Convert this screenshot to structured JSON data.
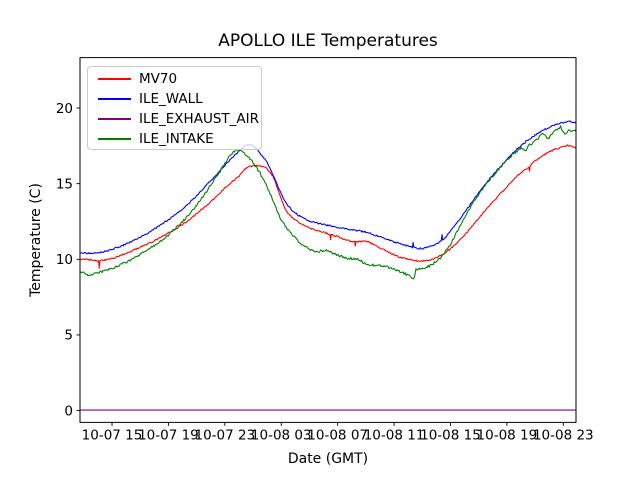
{
  "chart_data": {
    "type": "line",
    "title": "APOLLO ILE Temperatures",
    "xlabel": "Date (GMT)",
    "ylabel": "Temperature (C)",
    "x_encoding": "hours since 10-07 00:00 GMT",
    "xlim": [
      12.73,
      47.9
    ],
    "ylim": [
      -0.78,
      23.33
    ],
    "grid": false,
    "legend_position": "upper left",
    "x_ticks": [
      {
        "label": "10-07 15",
        "hour": 15
      },
      {
        "label": "10-07 19",
        "hour": 19
      },
      {
        "label": "10-07 23",
        "hour": 23
      },
      {
        "label": "10-08 03",
        "hour": 27
      },
      {
        "label": "10-08 07",
        "hour": 31
      },
      {
        "label": "10-08 11",
        "hour": 35
      },
      {
        "label": "10-08 15",
        "hour": 39
      },
      {
        "label": "10-08 19",
        "hour": 43
      },
      {
        "label": "10-08 23",
        "hour": 47
      }
    ],
    "y_ticks": [
      0,
      5,
      10,
      15,
      20
    ],
    "series": [
      {
        "name": "MV70",
        "color": "#ff0000",
        "noise": 0.05,
        "points": [
          [
            12.73,
            10.0
          ],
          [
            13.2,
            10.0
          ],
          [
            13.8,
            9.92
          ],
          [
            14.05,
            9.9
          ],
          [
            14.1,
            9.45
          ],
          [
            14.15,
            9.9
          ],
          [
            14.5,
            9.95
          ],
          [
            15,
            10.05
          ],
          [
            15.5,
            10.2
          ],
          [
            16,
            10.4
          ],
          [
            16.5,
            10.6
          ],
          [
            17,
            10.8
          ],
          [
            17.5,
            11.0
          ],
          [
            18,
            11.22
          ],
          [
            18.5,
            11.48
          ],
          [
            19,
            11.75
          ],
          [
            19.5,
            12.0
          ],
          [
            20,
            12.3
          ],
          [
            20.5,
            12.62
          ],
          [
            21,
            13.0
          ],
          [
            21.5,
            13.4
          ],
          [
            22,
            13.8
          ],
          [
            22.5,
            14.25
          ],
          [
            23,
            14.7
          ],
          [
            23.5,
            15.1
          ],
          [
            24,
            15.5
          ],
          [
            24.4,
            15.95
          ],
          [
            24.8,
            16.15
          ],
          [
            25.2,
            16.2
          ],
          [
            25.6,
            16.15
          ],
          [
            26,
            16.0
          ],
          [
            26.4,
            15.5
          ],
          [
            26.7,
            14.8
          ],
          [
            27,
            14.0
          ],
          [
            27.3,
            13.3
          ],
          [
            27.6,
            12.9
          ],
          [
            28,
            12.6
          ],
          [
            28.4,
            12.35
          ],
          [
            28.8,
            12.15
          ],
          [
            29.2,
            12.0
          ],
          [
            29.6,
            11.9
          ],
          [
            30,
            11.78
          ],
          [
            30.45,
            11.65
          ],
          [
            30.5,
            11.32
          ],
          [
            30.55,
            11.62
          ],
          [
            31,
            11.5
          ],
          [
            31.4,
            11.35
          ],
          [
            31.7,
            11.25
          ],
          [
            32,
            11.2
          ],
          [
            32.2,
            11.18
          ],
          [
            32.25,
            10.9
          ],
          [
            32.3,
            11.15
          ],
          [
            32.8,
            11.2
          ],
          [
            33.2,
            11.15
          ],
          [
            33.6,
            10.95
          ],
          [
            34,
            10.75
          ],
          [
            34.5,
            10.52
          ],
          [
            35,
            10.3
          ],
          [
            35.5,
            10.12
          ],
          [
            36,
            10.0
          ],
          [
            36.5,
            9.9
          ],
          [
            37,
            9.88
          ],
          [
            37.5,
            9.95
          ],
          [
            38,
            10.1
          ],
          [
            38.5,
            10.35
          ],
          [
            39,
            10.7
          ],
          [
            39.5,
            11.1
          ],
          [
            40,
            11.6
          ],
          [
            40.5,
            12.15
          ],
          [
            41,
            12.7
          ],
          [
            41.5,
            13.25
          ],
          [
            42,
            13.8
          ],
          [
            42.5,
            14.3
          ],
          [
            43,
            14.82
          ],
          [
            43.5,
            15.3
          ],
          [
            44,
            15.75
          ],
          [
            44.55,
            16.1
          ],
          [
            44.6,
            15.85
          ],
          [
            44.65,
            16.2
          ],
          [
            45,
            16.5
          ],
          [
            45.5,
            16.85
          ],
          [
            46,
            17.1
          ],
          [
            46.5,
            17.3
          ],
          [
            47,
            17.45
          ],
          [
            47.3,
            17.52
          ],
          [
            47.6,
            17.45
          ],
          [
            47.9,
            17.4
          ]
        ]
      },
      {
        "name": "ILE_WALL",
        "color": "#0000ff",
        "noise": 0.05,
        "points": [
          [
            12.73,
            10.45
          ],
          [
            13,
            10.42
          ],
          [
            13.5,
            10.38
          ],
          [
            14,
            10.42
          ],
          [
            14.5,
            10.52
          ],
          [
            15,
            10.65
          ],
          [
            15.5,
            10.82
          ],
          [
            16,
            11.02
          ],
          [
            16.5,
            11.22
          ],
          [
            17,
            11.45
          ],
          [
            17.5,
            11.72
          ],
          [
            18,
            12.0
          ],
          [
            18.5,
            12.3
          ],
          [
            19,
            12.62
          ],
          [
            19.5,
            12.95
          ],
          [
            20,
            13.32
          ],
          [
            20.5,
            13.75
          ],
          [
            21,
            14.2
          ],
          [
            21.5,
            14.7
          ],
          [
            22,
            15.2
          ],
          [
            22.5,
            15.7
          ],
          [
            23,
            16.2
          ],
          [
            23.5,
            16.7
          ],
          [
            24,
            17.15
          ],
          [
            24.4,
            17.5
          ],
          [
            24.7,
            17.62
          ],
          [
            25,
            17.52
          ],
          [
            25.4,
            17.15
          ],
          [
            26,
            16.4
          ],
          [
            26.5,
            15.4
          ],
          [
            27,
            14.3
          ],
          [
            27.5,
            13.5
          ],
          [
            28,
            13.05
          ],
          [
            28.3,
            12.85
          ],
          [
            28.7,
            12.65
          ],
          [
            29,
            12.52
          ],
          [
            29.5,
            12.4
          ],
          [
            30,
            12.3
          ],
          [
            30.5,
            12.2
          ],
          [
            31,
            12.1
          ],
          [
            31.5,
            12.02
          ],
          [
            32,
            11.95
          ],
          [
            32.5,
            11.88
          ],
          [
            33,
            11.8
          ],
          [
            33.5,
            11.65
          ],
          [
            34,
            11.5
          ],
          [
            34.5,
            11.32
          ],
          [
            35,
            11.15
          ],
          [
            35.5,
            11.0
          ],
          [
            36,
            10.88
          ],
          [
            36.3,
            10.8
          ],
          [
            36.35,
            11.15
          ],
          [
            36.4,
            10.78
          ],
          [
            36.8,
            10.72
          ],
          [
            37.2,
            10.75
          ],
          [
            37.6,
            10.85
          ],
          [
            38,
            11.0
          ],
          [
            38.35,
            11.25
          ],
          [
            38.4,
            11.6
          ],
          [
            38.45,
            11.28
          ],
          [
            38.7,
            11.5
          ],
          [
            39,
            11.85
          ],
          [
            39.5,
            12.45
          ],
          [
            40,
            13.1
          ],
          [
            40.5,
            13.75
          ],
          [
            41,
            14.4
          ],
          [
            41.5,
            15.0
          ],
          [
            42,
            15.55
          ],
          [
            42.5,
            16.1
          ],
          [
            43,
            16.6
          ],
          [
            43.5,
            17.1
          ],
          [
            44,
            17.5
          ],
          [
            44.5,
            17.9
          ],
          [
            45,
            18.2
          ],
          [
            45.5,
            18.5
          ],
          [
            46,
            18.72
          ],
          [
            46.5,
            18.9
          ],
          [
            47,
            19.05
          ],
          [
            47.4,
            19.12
          ],
          [
            47.7,
            19.05
          ],
          [
            47.9,
            19.0
          ]
        ]
      },
      {
        "name": "ILE_EXHAUST_AIR",
        "color": "#800080",
        "noise": 0,
        "points": [
          [
            12.73,
            0.03
          ],
          [
            47.9,
            0.03
          ]
        ]
      },
      {
        "name": "ILE_INTAKE",
        "color": "#008000",
        "noise": 0.08,
        "points": [
          [
            12.73,
            9.2
          ],
          [
            13,
            9.1
          ],
          [
            13.3,
            8.95
          ],
          [
            13.6,
            9.0
          ],
          [
            14,
            9.1
          ],
          [
            14.5,
            9.25
          ],
          [
            15,
            9.4
          ],
          [
            15.5,
            9.6
          ],
          [
            16,
            9.8
          ],
          [
            16.5,
            10.05
          ],
          [
            17,
            10.3
          ],
          [
            17.5,
            10.6
          ],
          [
            18,
            10.9
          ],
          [
            18.5,
            11.25
          ],
          [
            19,
            11.6
          ],
          [
            19.5,
            12.05
          ],
          [
            20,
            12.5
          ],
          [
            20.5,
            13.0
          ],
          [
            21,
            13.55
          ],
          [
            21.5,
            14.2
          ],
          [
            22,
            14.9
          ],
          [
            22.5,
            15.6
          ],
          [
            23,
            16.3
          ],
          [
            23.3,
            16.8
          ],
          [
            23.6,
            17.1
          ],
          [
            23.9,
            17.2
          ],
          [
            24.2,
            17.1
          ],
          [
            24.5,
            16.9
          ],
          [
            25,
            16.4
          ],
          [
            25.5,
            15.7
          ],
          [
            26,
            14.8
          ],
          [
            26.5,
            13.7
          ],
          [
            27,
            12.6
          ],
          [
            27.5,
            11.9
          ],
          [
            28,
            11.4
          ],
          [
            28.3,
            11.05
          ],
          [
            28.7,
            10.85
          ],
          [
            29,
            10.65
          ],
          [
            29.4,
            10.5
          ],
          [
            29.8,
            10.55
          ],
          [
            30.2,
            10.6
          ],
          [
            30.5,
            10.45
          ],
          [
            31,
            10.25
          ],
          [
            31.5,
            10.1
          ],
          [
            32,
            10.05
          ],
          [
            32.5,
            10.0
          ],
          [
            32.9,
            9.72
          ],
          [
            33.3,
            9.62
          ],
          [
            33.7,
            9.6
          ],
          [
            34,
            9.58
          ],
          [
            34.5,
            9.5
          ],
          [
            35,
            9.32
          ],
          [
            35.5,
            9.15
          ],
          [
            36,
            8.95
          ],
          [
            36.3,
            8.8
          ],
          [
            36.45,
            8.78
          ],
          [
            36.55,
            9.3
          ],
          [
            37,
            9.4
          ],
          [
            37.5,
            9.55
          ],
          [
            38,
            9.85
          ],
          [
            38.5,
            10.3
          ],
          [
            39,
            11.0
          ],
          [
            39.5,
            11.9
          ],
          [
            40,
            12.8
          ],
          [
            40.5,
            13.6
          ],
          [
            41,
            14.3
          ],
          [
            41.5,
            14.95
          ],
          [
            42,
            15.5
          ],
          [
            42.5,
            16.05
          ],
          [
            43,
            16.5
          ],
          [
            43.5,
            17.0
          ],
          [
            44,
            17.35
          ],
          [
            44.3,
            17.15
          ],
          [
            44.6,
            17.55
          ],
          [
            45,
            17.8
          ],
          [
            45.3,
            18.1
          ],
          [
            45.6,
            18.3
          ],
          [
            45.9,
            17.95
          ],
          [
            46.2,
            18.3
          ],
          [
            46.5,
            18.5
          ],
          [
            46.8,
            18.75
          ],
          [
            47.1,
            18.3
          ],
          [
            47.4,
            18.55
          ],
          [
            47.7,
            18.5
          ],
          [
            47.9,
            18.45
          ]
        ]
      }
    ]
  }
}
